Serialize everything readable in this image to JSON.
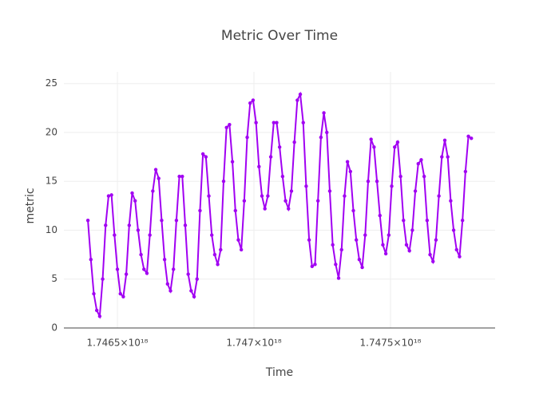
{
  "chart_data": {
    "type": "line",
    "title": "Metric Over Time",
    "x_label": "Time",
    "y_label": "metric",
    "color": "#a100f2",
    "grid": true,
    "markers": true,
    "xlim": [
      1.746304e+18,
      1.747883e+18
    ],
    "ylim": [
      0,
      26.2
    ],
    "xticks": [
      {
        "value": 1.7465e+18,
        "label": "1.7465×10¹⁸"
      },
      {
        "value": 1.747e+18,
        "label": "1.747×10¹⁸"
      },
      {
        "value": 1.7475e+18,
        "label": "1.7475×10¹⁸"
      }
    ],
    "yticks": [
      0,
      5,
      10,
      15,
      20,
      25
    ],
    "x": [
      1.746392e+18,
      1.7464028e+18,
      1.7464136e+18,
      1.7464244e+18,
      1.7464352e+18,
      1.746446e+18,
      1.7464568e+18,
      1.7464676e+18,
      1.7464784e+18,
      1.7464892e+18,
      1.7465e+18,
      1.7465108e+18,
      1.7465216e+18,
      1.7465324e+18,
      1.7465432e+18,
      1.746554e+18,
      1.7465648e+18,
      1.7465756e+18,
      1.7465864e+18,
      1.7465972e+18,
      1.746608e+18,
      1.7466188e+18,
      1.7466296e+18,
      1.7466404e+18,
      1.7466512e+18,
      1.746662e+18,
      1.7466728e+18,
      1.7466836e+18,
      1.7466944e+18,
      1.7467052e+18,
      1.746716e+18,
      1.7467268e+18,
      1.7467376e+18,
      1.7467484e+18,
      1.7467592e+18,
      1.74677e+18,
      1.7467808e+18,
      1.7467916e+18,
      1.7468024e+18,
      1.7468132e+18,
      1.746824e+18,
      1.7468348e+18,
      1.7468456e+18,
      1.7468564e+18,
      1.7468672e+18,
      1.746878e+18,
      1.7468888e+18,
      1.7468996e+18,
      1.7469104e+18,
      1.7469212e+18,
      1.746932e+18,
      1.7469428e+18,
      1.7469536e+18,
      1.7469644e+18,
      1.7469752e+18,
      1.746986e+18,
      1.7469968e+18,
      1.7470076e+18,
      1.7470184e+18,
      1.7470292e+18,
      1.74704e+18,
      1.7470508e+18,
      1.7470616e+18,
      1.7470724e+18,
      1.7470832e+18,
      1.747094e+18,
      1.7471048e+18,
      1.7471156e+18,
      1.7471264e+18,
      1.7471372e+18,
      1.747148e+18,
      1.7471588e+18,
      1.7471696e+18,
      1.7471804e+18,
      1.7471912e+18,
      1.747202e+18,
      1.7472128e+18,
      1.7472236e+18,
      1.7472344e+18,
      1.7472452e+18,
      1.747256e+18,
      1.7472668e+18,
      1.7472776e+18,
      1.7472884e+18,
      1.7472992e+18,
      1.74731e+18,
      1.7473208e+18,
      1.7473316e+18,
      1.7473424e+18,
      1.7473532e+18,
      1.747364e+18,
      1.7473748e+18,
      1.7473856e+18,
      1.7473964e+18,
      1.7474072e+18,
      1.747418e+18,
      1.7474288e+18,
      1.7474396e+18,
      1.7474504e+18,
      1.7474612e+18,
      1.747472e+18,
      1.7474828e+18,
      1.7474936e+18,
      1.7475044e+18,
      1.7475152e+18,
      1.747526e+18,
      1.7475368e+18,
      1.7475476e+18,
      1.7475584e+18,
      1.7475692e+18,
      1.74758e+18,
      1.7475908e+18,
      1.7476016e+18,
      1.7476124e+18,
      1.7476232e+18,
      1.747634e+18,
      1.7476448e+18,
      1.7476556e+18,
      1.7476664e+18,
      1.7476772e+18,
      1.747688e+18,
      1.7476988e+18,
      1.7477096e+18,
      1.7477204e+18,
      1.7477312e+18,
      1.747742e+18,
      1.7477528e+18,
      1.7477636e+18,
      1.7477744e+18,
      1.7477852e+18,
      1.747796e+18
    ],
    "values": [
      11,
      7,
      3.5,
      1.8,
      1.2,
      5,
      10.5,
      13.5,
      13.6,
      9.5,
      6,
      3.5,
      3.2,
      5.5,
      10.5,
      13.8,
      13,
      10,
      7.5,
      6,
      5.6,
      9.5,
      14,
      16.2,
      15.3,
      11,
      7,
      4.5,
      3.8,
      6,
      11,
      15.5,
      15.5,
      10.5,
      5.5,
      3.8,
      3.2,
      5,
      12,
      17.8,
      17.5,
      13.5,
      9.5,
      7.5,
      6.5,
      8,
      15,
      20.5,
      20.8,
      17,
      12,
      9,
      8,
      13,
      19.5,
      23,
      23.3,
      21,
      16.5,
      13.5,
      12.2,
      13.5,
      17.5,
      21,
      21,
      18.5,
      15.5,
      13,
      12.2,
      14,
      19,
      23.3,
      23.9,
      21,
      14.5,
      9,
      6.3,
      6.5,
      13,
      19.5,
      22,
      20,
      14,
      8.5,
      6.5,
      5.1,
      8,
      13.5,
      17,
      16,
      12,
      9,
      7,
      6.2,
      9.5,
      15,
      19.3,
      18.5,
      15,
      11.5,
      8.5,
      7.6,
      9.5,
      14.5,
      18.5,
      19,
      15.5,
      11,
      8.5,
      7.9,
      10,
      14,
      16.8,
      17.2,
      15.5,
      11,
      7.5,
      6.8,
      9,
      13.5,
      17.5,
      19.2,
      17.5,
      13,
      10,
      8,
      7.3,
      11,
      16,
      19.6,
      19.4
    ]
  }
}
